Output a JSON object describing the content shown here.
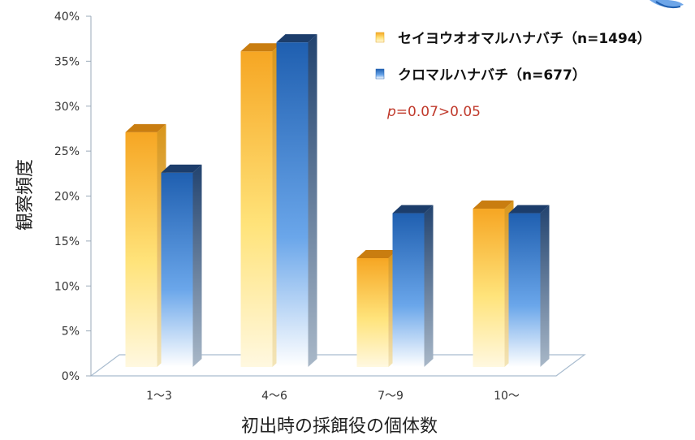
{
  "chart_data": {
    "type": "bar",
    "title": "",
    "xlabel": "初出時の採餌役の個体数",
    "ylabel": "観察頻度",
    "categories": [
      "1〜3",
      "4〜6",
      "7〜9",
      "10〜"
    ],
    "series": [
      {
        "name": "セイヨウオオマルハナバチ（n=1494）",
        "values": [
          28,
          37,
          14,
          19.5
        ]
      },
      {
        "name": "クロマルハナバチ（n=677）",
        "values": [
          23.5,
          38,
          19,
          19
        ]
      }
    ],
    "ylim": [
      0,
      40
    ],
    "yticks": [
      "0%",
      "5%",
      "10%",
      "15%",
      "20%",
      "25%",
      "30%",
      "35%",
      "40%"
    ],
    "annotation": {
      "italic": "p",
      "rest": "=0.07>0.05"
    },
    "legend_position": "top-right",
    "grid": false,
    "colors": {
      "series1_top": "#f6a623",
      "series1_bottom": "#fff8e0",
      "series1_side": "#e0a31e",
      "series1_cap": "#c97d10",
      "series2_top": "#1f5fb0",
      "series2_bottom": "#ffffff",
      "series2_side": "#2a4f7f",
      "series2_cap": "#1c3d6b",
      "annotation": "#c0392b"
    }
  }
}
